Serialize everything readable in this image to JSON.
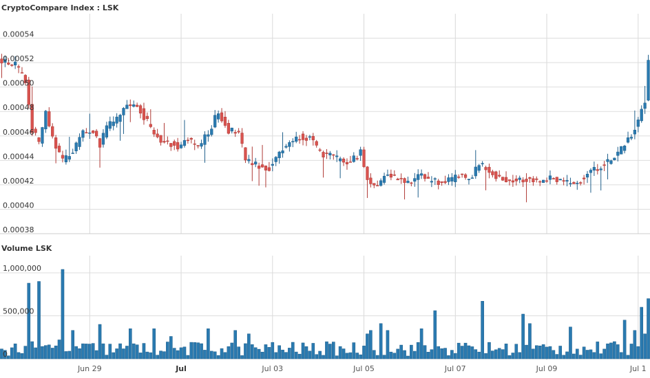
{
  "chart_data": [
    {
      "type": "candlestick",
      "title": "CryptoCompare Index : LSK",
      "ylim": [
        0.00038,
        0.00056
      ],
      "yticks": [
        "0.00038",
        "0.00040",
        "0.00042",
        "0.00044",
        "0.00046",
        "0.00048",
        "0.00050",
        "0.00052",
        "0.00054"
      ],
      "grid": true,
      "colors": {
        "up": "#2a7ab0",
        "down": "#d9534f",
        "wick_up": "#1f5f8b",
        "wick_down": "#b03a36"
      },
      "anchors": [
        [
          0,
          0.000522
        ],
        [
          4,
          0.000518
        ],
        [
          7,
          0.000505
        ],
        [
          9,
          0.000465
        ],
        [
          11,
          0.000455
        ],
        [
          13,
          0.000478
        ],
        [
          15,
          0.000458
        ],
        [
          18,
          0.00044
        ],
        [
          21,
          0.000447
        ],
        [
          24,
          0.000462
        ],
        [
          27,
          0.000465
        ],
        [
          29,
          0.000452
        ],
        [
          31,
          0.000468
        ],
        [
          34,
          0.000473
        ],
        [
          37,
          0.000484
        ],
        [
          40,
          0.000486
        ],
        [
          42,
          0.000476
        ],
        [
          45,
          0.000462
        ],
        [
          48,
          0.000455
        ],
        [
          52,
          0.000452
        ],
        [
          55,
          0.000457
        ],
        [
          58,
          0.000451
        ],
        [
          61,
          0.000462
        ],
        [
          64,
          0.00048
        ],
        [
          67,
          0.000465
        ],
        [
          70,
          0.000462
        ],
        [
          72,
          0.00044
        ],
        [
          75,
          0.000436
        ],
        [
          79,
          0.000434
        ],
        [
          82,
          0.000446
        ],
        [
          85,
          0.000455
        ],
        [
          88,
          0.00046
        ],
        [
          91,
          0.000458
        ],
        [
          94,
          0.000446
        ],
        [
          97,
          0.000443
        ],
        [
          100,
          0.00044
        ],
        [
          103,
          0.000438
        ],
        [
          106,
          0.000447
        ],
        [
          108,
          0.000424
        ],
        [
          111,
          0.00042
        ],
        [
          114,
          0.00043
        ],
        [
          117,
          0.000425
        ],
        [
          120,
          0.000422
        ],
        [
          123,
          0.000428
        ],
        [
          126,
          0.000424
        ],
        [
          129,
          0.000422
        ],
        [
          132,
          0.000423
        ],
        [
          135,
          0.000427
        ],
        [
          138,
          0.000425
        ],
        [
          141,
          0.000436
        ],
        [
          144,
          0.000432
        ],
        [
          147,
          0.000425
        ],
        [
          150,
          0.000424
        ],
        [
          153,
          0.000425
        ],
        [
          156,
          0.000425
        ],
        [
          159,
          0.000423
        ],
        [
          162,
          0.000426
        ],
        [
          165,
          0.000424
        ],
        [
          168,
          0.00042
        ],
        [
          171,
          0.000424
        ],
        [
          174,
          0.00043
        ],
        [
          177,
          0.000436
        ],
        [
          180,
          0.00044
        ],
        [
          183,
          0.00045
        ],
        [
          186,
          0.00046
        ],
        [
          188,
          0.000474
        ],
        [
          190,
          0.000488
        ],
        [
          191,
          0.000522
        ]
      ],
      "x_ticks": [
        {
          "label": "Jun 29",
          "bold": false,
          "index": 26.5
        },
        {
          "label": "Jul",
          "bold": true,
          "index": 53.5
        },
        {
          "label": "Jul 03",
          "bold": false,
          "index": 80.5
        },
        {
          "label": "Jul 05",
          "bold": false,
          "index": 107.5
        },
        {
          "label": "Jul 07",
          "bold": false,
          "index": 134.5
        },
        {
          "label": "Jul 09",
          "bold": false,
          "index": 161.5
        },
        {
          "label": "Jul 1",
          "bold": false,
          "index": 188.5
        }
      ]
    },
    {
      "type": "bar",
      "title": "Volume LSK",
      "ylim": [
        0,
        1200000
      ],
      "yticks": [
        "0",
        "500,000",
        "1,000,000"
      ],
      "grid": true,
      "colors": {
        "bar": "#2a7ab0",
        "bar_stroke": "#1f5f8b"
      },
      "spikes": [
        [
          8,
          880000
        ],
        [
          11,
          900000
        ],
        [
          17,
          220000
        ],
        [
          18,
          1040000
        ],
        [
          21,
          330000
        ],
        [
          29,
          400000
        ],
        [
          38,
          350000
        ],
        [
          45,
          350000
        ],
        [
          50,
          260000
        ],
        [
          61,
          350000
        ],
        [
          69,
          330000
        ],
        [
          73,
          290000
        ],
        [
          108,
          290000
        ],
        [
          109,
          330000
        ],
        [
          112,
          410000
        ],
        [
          114,
          330000
        ],
        [
          124,
          350000
        ],
        [
          128,
          560000
        ],
        [
          142,
          670000
        ],
        [
          154,
          520000
        ],
        [
          156,
          410000
        ],
        [
          168,
          370000
        ],
        [
          184,
          450000
        ],
        [
          187,
          330000
        ],
        [
          189,
          600000
        ],
        [
          190,
          290000
        ],
        [
          191,
          700000
        ]
      ]
    }
  ]
}
